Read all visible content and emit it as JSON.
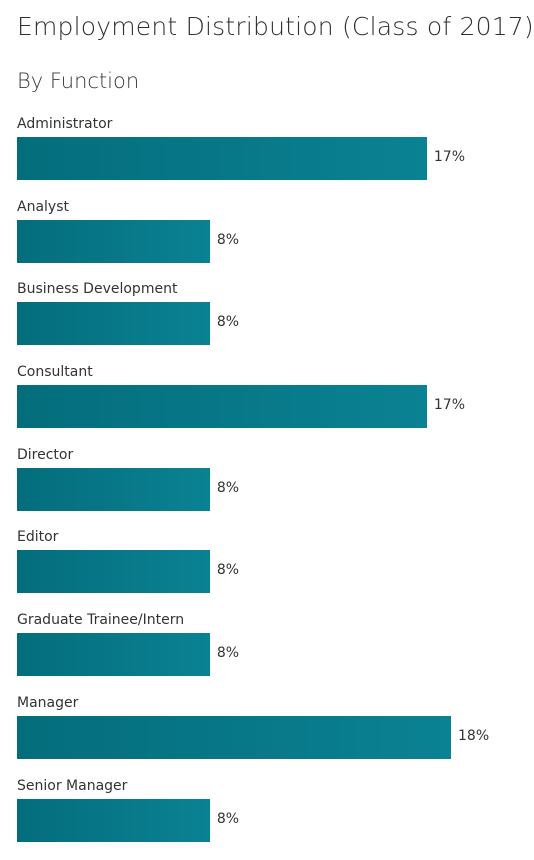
{
  "title": "Employment Distribution (Class of 2017)",
  "subtitle": "By Function",
  "colors": {
    "bar": "#067686",
    "text": "#333333"
  },
  "chart_data": {
    "type": "bar",
    "orientation": "horizontal",
    "title": "Employment Distribution (Class of 2017)",
    "subtitle": "By Function",
    "categories": [
      "Administrator",
      "Analyst",
      "Business Development",
      "Consultant",
      "Director",
      "Editor",
      "Graduate Trainee/Intern",
      "Manager",
      "Senior Manager"
    ],
    "values": [
      17,
      8,
      8,
      17,
      8,
      8,
      8,
      18,
      8
    ],
    "value_labels": [
      "17%",
      "8%",
      "8%",
      "17%",
      "8%",
      "8%",
      "8%",
      "18%",
      "8%"
    ],
    "unit": "%",
    "xlim": [
      0,
      20
    ],
    "grid": false,
    "legend": "none"
  }
}
